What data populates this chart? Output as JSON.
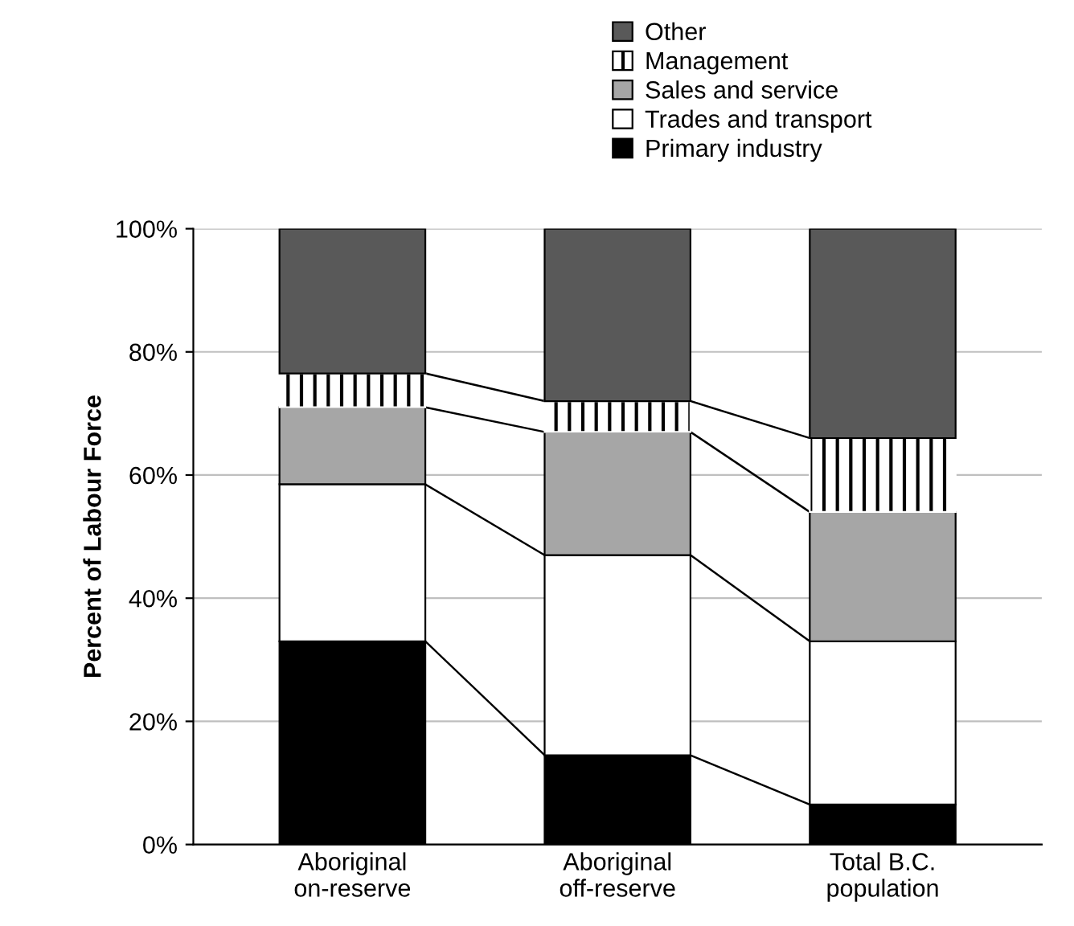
{
  "chart_data": {
    "type": "bar",
    "stacked": true,
    "ylabel": "Percent of Labour Force",
    "categories": [
      "Aboriginal\non-reserve",
      "Aboriginal\noff-reserve",
      "Total B.C.\npopulation"
    ],
    "series": [
      {
        "name": "Primary industry",
        "color": "#000000",
        "values": [
          33,
          14.5,
          6.5
        ]
      },
      {
        "name": "Trades and transport",
        "color": "#ffffff",
        "values": [
          25.5,
          32.5,
          26.5
        ]
      },
      {
        "name": "Sales and service",
        "color": "#a6a6a6",
        "values": [
          12.5,
          20,
          21
        ]
      },
      {
        "name": "Management",
        "color": "#ffffff",
        "values": [
          5.5,
          5,
          12
        ]
      },
      {
        "name": "Other",
        "color": "#595959",
        "values": [
          23.5,
          28,
          34
        ]
      }
    ],
    "ylim": [
      0,
      100
    ],
    "yticks": [
      {
        "value": 0,
        "label": "0%"
      },
      {
        "value": 20,
        "label": "20%"
      },
      {
        "value": 40,
        "label": "40%"
      },
      {
        "value": 60,
        "label": "60%"
      },
      {
        "value": 80,
        "label": "80%"
      },
      {
        "value": 100,
        "label": "100%"
      }
    ],
    "grid": "y",
    "legend": "top right"
  }
}
